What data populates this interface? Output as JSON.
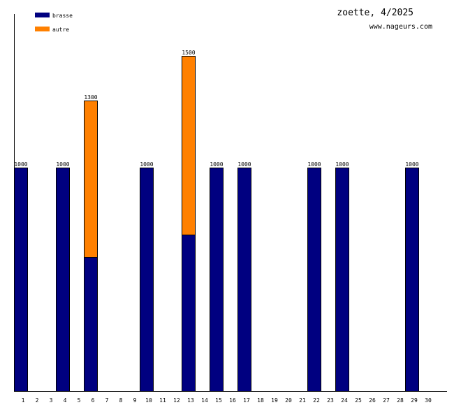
{
  "chart_data": {
    "type": "bar",
    "stacked": true,
    "title": "zoette, 4/2025",
    "subtitle": "www.nageurs.com",
    "categories": [
      "1",
      "2",
      "3",
      "4",
      "5",
      "6",
      "7",
      "8",
      "9",
      "10",
      "11",
      "12",
      "13",
      "14",
      "15",
      "16",
      "17",
      "18",
      "19",
      "20",
      "21",
      "22",
      "23",
      "24",
      "25",
      "26",
      "27",
      "28",
      "29",
      "30"
    ],
    "series": [
      {
        "name": "brasse",
        "color": "#000080",
        "values": [
          1000,
          0,
          0,
          1000,
          0,
          600,
          0,
          0,
          0,
          1000,
          0,
          0,
          700,
          0,
          1000,
          0,
          1000,
          0,
          0,
          0,
          0,
          1000,
          0,
          1000,
          0,
          0,
          0,
          0,
          1000,
          0
        ]
      },
      {
        "name": "autre",
        "color": "#ff8000",
        "values": [
          0,
          0,
          0,
          0,
          0,
          700,
          0,
          0,
          0,
          0,
          0,
          0,
          800,
          0,
          0,
          0,
          0,
          0,
          0,
          0,
          0,
          0,
          0,
          0,
          0,
          0,
          0,
          0,
          0,
          0
        ]
      }
    ],
    "ylim": [
      0,
      1687.5
    ],
    "legend": "top-left",
    "grid": false
  }
}
